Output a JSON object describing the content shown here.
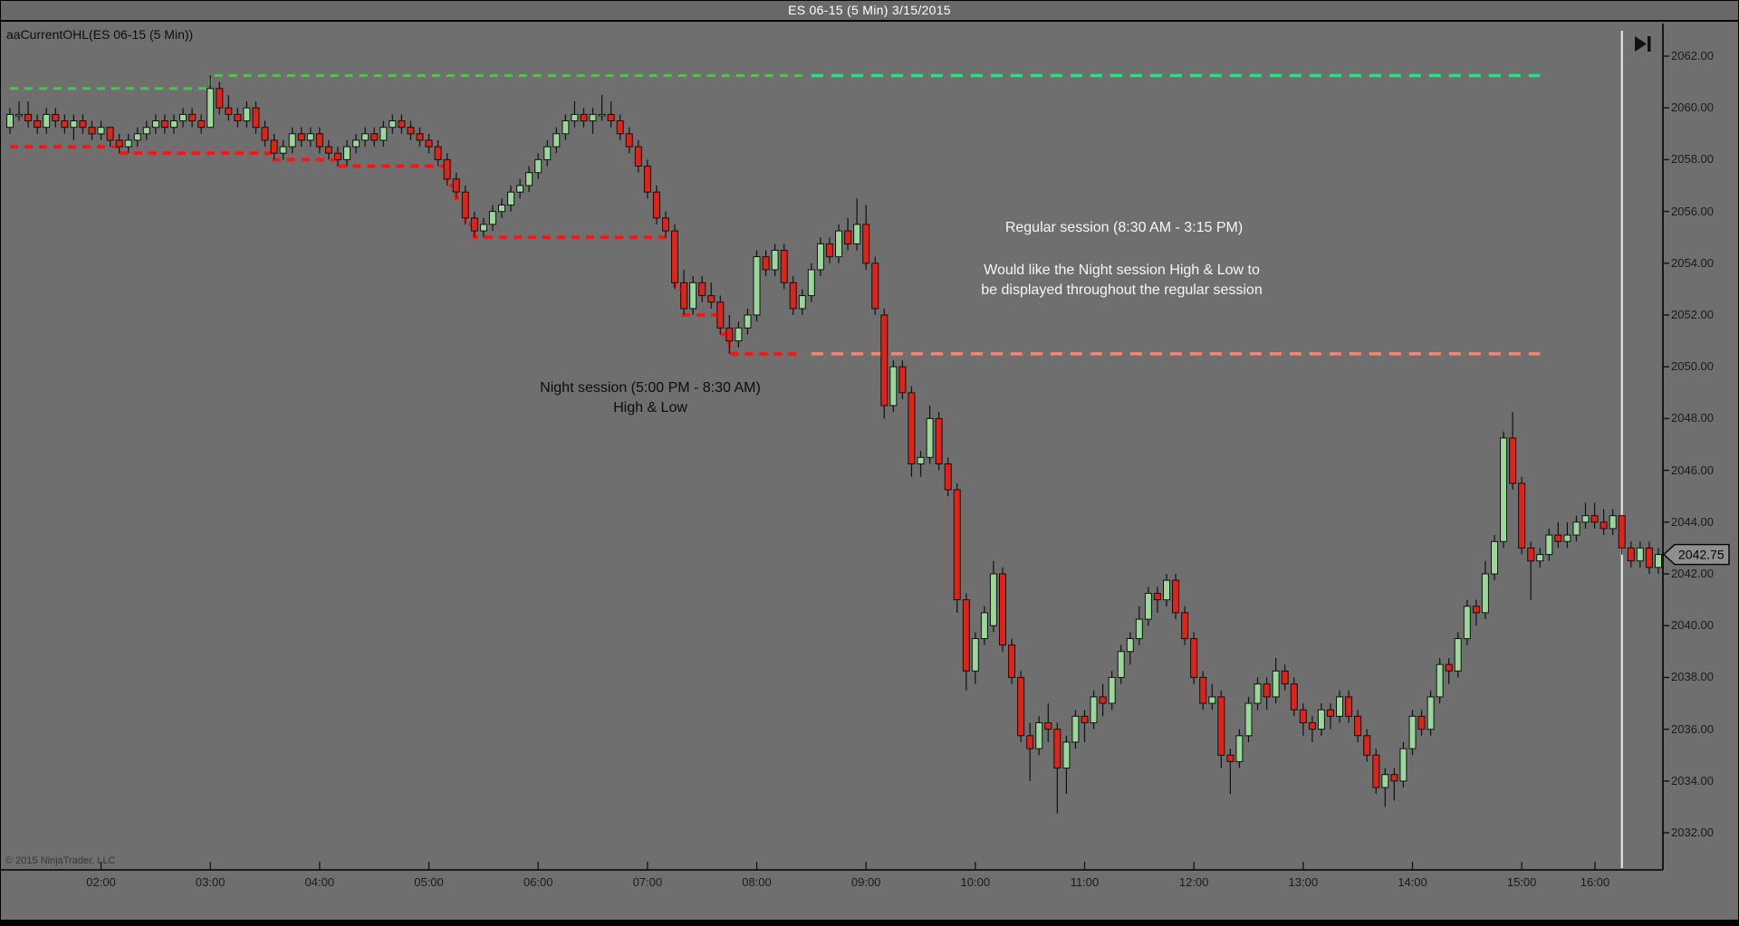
{
  "window": {
    "title": "ES 06-15 (5 Min)  3/15/2015"
  },
  "chart": {
    "indicator_label": "aaCurrentOHL(ES 06-15 (5 Min))",
    "copyright": "© 2015 NinjaTrader, LLC",
    "last_price": "2042.75",
    "annotations": {
      "regular_session_line1": "Regular session (8:30 AM - 3:15 PM)",
      "request_line1": "Would like the Night session High & Low  to",
      "request_line2": "be displayed throughout the regular session",
      "night_session_line1": "Night session (5:00 PM - 8:30 AM)",
      "night_session_line2": "High & Low"
    },
    "icons": {
      "go_to_end": "skip-to-last-bar"
    },
    "colors": {
      "background": "#6f6f6f",
      "up_candle": "#99d899",
      "down_candle": "#e02318",
      "candle_outline": "#101010",
      "night_high_line": "#3ecf3e",
      "night_low_line": "#ff1414",
      "regular_high_line": "#21e583",
      "regular_low_line": "#ff8273",
      "session_divider": "#ededed",
      "axis_text": "#1b1b1b",
      "marker_fill": "#8f8f8f"
    }
  },
  "chart_data": {
    "type": "candlestick",
    "symbol": "ES 06-15",
    "period": "5 Min",
    "date": "3/15/2015",
    "start_time": "01:10",
    "interval_minutes": 5,
    "x_axis": {
      "labels": [
        "02:00",
        "03:00",
        "04:00",
        "05:00",
        "06:00",
        "07:00",
        "08:00",
        "09:00",
        "10:00",
        "11:00",
        "12:00",
        "13:00",
        "14:00",
        "15:00",
        "16:00"
      ]
    },
    "y_axis": {
      "min": 2032,
      "max": 2062,
      "tick_step": 2,
      "ylim": [
        2030.5,
        2063.3
      ]
    },
    "last_price": 2042.75,
    "levels": {
      "night_high_steps": [
        {
          "from": "01:10",
          "to": "03:00",
          "price": 2060.75
        },
        {
          "from": "03:00",
          "to": "08:25",
          "price": 2061.25
        }
      ],
      "night_low_steps": [
        {
          "from": "01:10",
          "to": "02:10",
          "price": 2058.5
        },
        {
          "from": "02:10",
          "to": "03:35",
          "price": 2058.25
        },
        {
          "from": "03:35",
          "to": "04:10",
          "price": 2058.0
        },
        {
          "from": "04:10",
          "to": "05:10",
          "price": 2057.75
        },
        {
          "from": "05:10",
          "to": "05:15",
          "price": 2057.0
        },
        {
          "from": "05:15",
          "to": "05:20",
          "price": 2056.5
        },
        {
          "from": "05:20",
          "to": "05:25",
          "price": 2055.5
        },
        {
          "from": "05:25",
          "to": "07:15",
          "price": 2055.0
        },
        {
          "from": "07:15",
          "to": "07:20",
          "price": 2053.0
        },
        {
          "from": "07:20",
          "to": "07:40",
          "price": 2052.0
        },
        {
          "from": "07:40",
          "to": "07:45",
          "price": 2051.25
        },
        {
          "from": "07:45",
          "to": "08:25",
          "price": 2050.5
        }
      ],
      "regular_session_high": {
        "from": "08:30",
        "to": "15:10",
        "price": 2061.25
      },
      "regular_session_low": {
        "from": "08:30",
        "to": "15:10",
        "price": 2050.5
      },
      "session_divider_time": "15:55"
    },
    "bars": [
      [
        2059.25,
        2060.0,
        2059.0,
        2059.75
      ],
      [
        2059.75,
        2060.25,
        2059.5,
        2059.75
      ],
      [
        2059.75,
        2060.25,
        2059.25,
        2059.5
      ],
      [
        2059.5,
        2059.75,
        2059.0,
        2059.25
      ],
      [
        2059.25,
        2060.0,
        2059.0,
        2059.75
      ],
      [
        2059.75,
        2060.0,
        2059.25,
        2059.5
      ],
      [
        2059.5,
        2059.75,
        2059.0,
        2059.25
      ],
      [
        2059.25,
        2059.75,
        2058.75,
        2059.5
      ],
      [
        2059.5,
        2059.75,
        2059.0,
        2059.25
      ],
      [
        2059.25,
        2059.5,
        2058.75,
        2059.0
      ],
      [
        2059.0,
        2059.5,
        2058.75,
        2059.25
      ],
      [
        2059.25,
        2059.25,
        2058.5,
        2058.75
      ],
      [
        2058.75,
        2059.0,
        2058.25,
        2058.5
      ],
      [
        2058.5,
        2059.0,
        2058.25,
        2058.75
      ],
      [
        2058.75,
        2059.25,
        2058.5,
        2059.0
      ],
      [
        2059.0,
        2059.5,
        2058.75,
        2059.25
      ],
      [
        2059.25,
        2059.75,
        2059.0,
        2059.5
      ],
      [
        2059.5,
        2059.75,
        2059.0,
        2059.25
      ],
      [
        2059.25,
        2059.75,
        2059.0,
        2059.5
      ],
      [
        2059.5,
        2060.0,
        2059.25,
        2059.75
      ],
      [
        2059.75,
        2060.0,
        2059.25,
        2059.5
      ],
      [
        2059.5,
        2059.75,
        2059.0,
        2059.25
      ],
      [
        2059.25,
        2061.25,
        2059.25,
        2060.75
      ],
      [
        2060.75,
        2061.0,
        2059.75,
        2060.0
      ],
      [
        2060.0,
        2060.5,
        2059.5,
        2059.75
      ],
      [
        2059.75,
        2060.0,
        2059.25,
        2059.5
      ],
      [
        2059.5,
        2060.25,
        2059.25,
        2060.0
      ],
      [
        2060.0,
        2060.25,
        2059.0,
        2059.25
      ],
      [
        2059.25,
        2059.5,
        2058.5,
        2058.75
      ],
      [
        2058.75,
        2059.0,
        2058.0,
        2058.25
      ],
      [
        2058.25,
        2058.75,
        2058.0,
        2058.5
      ],
      [
        2058.5,
        2059.25,
        2058.25,
        2059.0
      ],
      [
        2059.0,
        2059.25,
        2058.5,
        2058.75
      ],
      [
        2058.75,
        2059.25,
        2058.5,
        2059.0
      ],
      [
        2059.0,
        2059.25,
        2058.25,
        2058.5
      ],
      [
        2058.5,
        2058.75,
        2058.0,
        2058.25
      ],
      [
        2058.25,
        2058.5,
        2057.75,
        2058.0
      ],
      [
        2058.0,
        2058.75,
        2057.75,
        2058.5
      ],
      [
        2058.5,
        2059.0,
        2058.25,
        2058.75
      ],
      [
        2058.75,
        2059.25,
        2058.5,
        2059.0
      ],
      [
        2059.0,
        2059.25,
        2058.5,
        2058.75
      ],
      [
        2058.75,
        2059.5,
        2058.5,
        2059.25
      ],
      [
        2059.25,
        2059.75,
        2059.0,
        2059.5
      ],
      [
        2059.5,
        2059.75,
        2059.0,
        2059.25
      ],
      [
        2059.25,
        2059.5,
        2058.75,
        2059.0
      ],
      [
        2059.0,
        2059.25,
        2058.5,
        2058.75
      ],
      [
        2058.75,
        2059.0,
        2058.25,
        2058.5
      ],
      [
        2058.5,
        2058.75,
        2057.75,
        2058.0
      ],
      [
        2058.0,
        2058.25,
        2057.0,
        2057.25
      ],
      [
        2057.25,
        2057.5,
        2056.5,
        2056.75
      ],
      [
        2056.75,
        2057.0,
        2055.5,
        2055.75
      ],
      [
        2055.75,
        2056.0,
        2055.0,
        2055.25
      ],
      [
        2055.25,
        2055.75,
        2055.0,
        2055.5
      ],
      [
        2055.5,
        2056.25,
        2055.25,
        2056.0
      ],
      [
        2056.0,
        2056.5,
        2055.75,
        2056.25
      ],
      [
        2056.25,
        2057.0,
        2056.0,
        2056.75
      ],
      [
        2056.75,
        2057.25,
        2056.5,
        2057.0
      ],
      [
        2057.0,
        2057.75,
        2056.75,
        2057.5
      ],
      [
        2057.5,
        2058.25,
        2057.25,
        2058.0
      ],
      [
        2058.0,
        2058.75,
        2057.75,
        2058.5
      ],
      [
        2058.5,
        2059.25,
        2058.25,
        2059.0
      ],
      [
        2059.0,
        2059.75,
        2058.75,
        2059.5
      ],
      [
        2059.5,
        2060.25,
        2059.25,
        2059.75
      ],
      [
        2059.75,
        2060.0,
        2059.25,
        2059.5
      ],
      [
        2059.5,
        2060.0,
        2059.0,
        2059.75
      ],
      [
        2059.75,
        2060.5,
        2059.5,
        2059.75
      ],
      [
        2059.75,
        2060.25,
        2059.25,
        2059.5
      ],
      [
        2059.5,
        2059.75,
        2058.75,
        2059.0
      ],
      [
        2059.0,
        2059.25,
        2058.25,
        2058.5
      ],
      [
        2058.5,
        2058.75,
        2057.5,
        2057.75
      ],
      [
        2057.75,
        2058.0,
        2056.5,
        2056.75
      ],
      [
        2056.75,
        2057.0,
        2055.5,
        2055.75
      ],
      [
        2055.75,
        2056.0,
        2055.0,
        2055.25
      ],
      [
        2055.25,
        2055.5,
        2053.0,
        2053.25
      ],
      [
        2053.25,
        2053.75,
        2052.0,
        2052.25
      ],
      [
        2052.25,
        2053.5,
        2052.0,
        2053.25
      ],
      [
        2053.25,
        2053.5,
        2052.5,
        2052.75
      ],
      [
        2052.75,
        2053.25,
        2052.25,
        2052.5
      ],
      [
        2052.5,
        2052.75,
        2051.25,
        2051.5
      ],
      [
        2051.5,
        2052.0,
        2050.5,
        2051.0
      ],
      [
        2051.0,
        2051.75,
        2050.75,
        2051.5
      ],
      [
        2051.5,
        2052.25,
        2051.25,
        2052.0
      ],
      [
        2052.0,
        2054.5,
        2051.75,
        2054.25
      ],
      [
        2054.25,
        2054.5,
        2053.5,
        2053.75
      ],
      [
        2053.75,
        2054.75,
        2053.5,
        2054.5
      ],
      [
        2054.5,
        2054.75,
        2053.0,
        2053.25
      ],
      [
        2053.25,
        2053.5,
        2052.0,
        2052.25
      ],
      [
        2052.25,
        2053.0,
        2052.0,
        2052.75
      ],
      [
        2052.75,
        2054.0,
        2052.5,
        2053.75
      ],
      [
        2053.75,
        2055.0,
        2053.5,
        2054.75
      ],
      [
        2054.75,
        2055.0,
        2054.0,
        2054.25
      ],
      [
        2054.25,
        2055.5,
        2054.0,
        2055.25
      ],
      [
        2055.25,
        2055.75,
        2054.5,
        2054.75
      ],
      [
        2054.75,
        2056.5,
        2054.5,
        2055.5
      ],
      [
        2055.5,
        2056.25,
        2053.75,
        2054.0
      ],
      [
        2054.0,
        2054.25,
        2052.0,
        2052.25
      ],
      [
        2052.0,
        2052.25,
        2048.0,
        2048.5
      ],
      [
        2048.5,
        2050.25,
        2048.25,
        2050.0
      ],
      [
        2050.0,
        2050.25,
        2048.75,
        2049.0
      ],
      [
        2049.0,
        2049.25,
        2045.75,
        2046.25
      ],
      [
        2046.25,
        2046.75,
        2045.75,
        2046.5
      ],
      [
        2046.5,
        2048.5,
        2046.25,
        2048.0
      ],
      [
        2048.0,
        2048.25,
        2046.0,
        2046.25
      ],
      [
        2046.25,
        2046.5,
        2045.0,
        2045.25
      ],
      [
        2045.25,
        2045.5,
        2040.5,
        2041.0
      ],
      [
        2041.0,
        2041.25,
        2037.5,
        2038.25
      ],
      [
        2038.25,
        2039.75,
        2037.75,
        2039.5
      ],
      [
        2039.5,
        2040.75,
        2039.25,
        2040.5
      ],
      [
        2040.0,
        2042.5,
        2039.75,
        2042.0
      ],
      [
        2042.0,
        2042.25,
        2039.0,
        2039.25
      ],
      [
        2039.25,
        2039.5,
        2037.75,
        2038.0
      ],
      [
        2038.0,
        2038.25,
        2035.5,
        2035.75
      ],
      [
        2035.75,
        2036.25,
        2034.0,
        2035.25
      ],
      [
        2035.25,
        2036.5,
        2035.0,
        2036.25
      ],
      [
        2036.25,
        2037.0,
        2035.5,
        2036.0
      ],
      [
        2036.0,
        2036.25,
        2032.75,
        2034.5
      ],
      [
        2034.5,
        2035.75,
        2033.5,
        2035.5
      ],
      [
        2035.5,
        2036.75,
        2035.25,
        2036.5
      ],
      [
        2036.5,
        2036.75,
        2035.5,
        2036.25
      ],
      [
        2036.25,
        2037.5,
        2036.0,
        2037.25
      ],
      [
        2037.25,
        2037.75,
        2036.5,
        2037.0
      ],
      [
        2037.0,
        2038.25,
        2036.75,
        2038.0
      ],
      [
        2038.0,
        2039.25,
        2037.75,
        2039.0
      ],
      [
        2039.0,
        2039.75,
        2038.5,
        2039.5
      ],
      [
        2039.5,
        2040.75,
        2039.25,
        2040.25
      ],
      [
        2040.25,
        2041.5,
        2040.0,
        2041.25
      ],
      [
        2041.25,
        2041.5,
        2040.5,
        2041.0
      ],
      [
        2041.0,
        2042.0,
        2040.75,
        2041.75
      ],
      [
        2041.75,
        2042.0,
        2040.25,
        2040.5
      ],
      [
        2040.5,
        2040.75,
        2039.25,
        2039.5
      ],
      [
        2039.5,
        2039.75,
        2037.75,
        2038.0
      ],
      [
        2038.0,
        2038.25,
        2036.75,
        2037.0
      ],
      [
        2037.0,
        2037.75,
        2036.75,
        2037.25
      ],
      [
        2037.25,
        2037.5,
        2034.5,
        2035.0
      ],
      [
        2035.0,
        2035.25,
        2033.5,
        2034.75
      ],
      [
        2034.75,
        2036.0,
        2034.5,
        2035.75
      ],
      [
        2035.75,
        2037.25,
        2035.5,
        2037.0
      ],
      [
        2037.0,
        2038.0,
        2036.75,
        2037.75
      ],
      [
        2037.75,
        2038.0,
        2036.75,
        2037.25
      ],
      [
        2037.25,
        2038.75,
        2037.0,
        2038.25
      ],
      [
        2038.25,
        2038.5,
        2037.5,
        2037.75
      ],
      [
        2037.75,
        2038.0,
        2036.5,
        2036.75
      ],
      [
        2036.75,
        2037.0,
        2035.75,
        2036.25
      ],
      [
        2036.25,
        2036.5,
        2035.5,
        2036.0
      ],
      [
        2036.0,
        2037.0,
        2035.75,
        2036.75
      ],
      [
        2036.75,
        2037.0,
        2036.0,
        2036.5
      ],
      [
        2036.5,
        2037.5,
        2036.25,
        2037.25
      ],
      [
        2037.25,
        2037.5,
        2036.25,
        2036.5
      ],
      [
        2036.5,
        2036.75,
        2035.5,
        2035.75
      ],
      [
        2035.75,
        2036.0,
        2034.75,
        2035.0
      ],
      [
        2035.0,
        2035.25,
        2033.5,
        2033.75
      ],
      [
        2033.75,
        2034.5,
        2033.0,
        2034.25
      ],
      [
        2034.25,
        2034.5,
        2033.25,
        2034.0
      ],
      [
        2034.0,
        2035.5,
        2033.75,
        2035.25
      ],
      [
        2035.25,
        2036.75,
        2035.0,
        2036.5
      ],
      [
        2036.5,
        2036.75,
        2035.75,
        2036.0
      ],
      [
        2036.0,
        2037.5,
        2035.75,
        2037.25
      ],
      [
        2037.25,
        2038.75,
        2037.0,
        2038.5
      ],
      [
        2038.5,
        2038.75,
        2037.75,
        2038.25
      ],
      [
        2038.25,
        2039.75,
        2038.0,
        2039.5
      ],
      [
        2039.5,
        2041.0,
        2039.25,
        2040.75
      ],
      [
        2040.75,
        2041.0,
        2040.0,
        2040.5
      ],
      [
        2040.5,
        2042.5,
        2040.25,
        2042.0
      ],
      [
        2042.0,
        2043.5,
        2041.75,
        2043.25
      ],
      [
        2043.25,
        2047.5,
        2043.0,
        2047.25
      ],
      [
        2047.25,
        2048.25,
        2045.25,
        2045.5
      ],
      [
        2045.5,
        2045.75,
        2042.75,
        2043.0
      ],
      [
        2043.0,
        2043.25,
        2041.0,
        2042.5
      ],
      [
        2042.5,
        2043.0,
        2042.25,
        2042.75
      ],
      [
        2042.75,
        2043.75,
        2042.5,
        2043.5
      ],
      [
        2043.5,
        2044.0,
        2043.0,
        2043.25
      ],
      [
        2043.25,
        2044.0,
        2043.0,
        2043.5
      ],
      [
        2043.5,
        2044.25,
        2043.25,
        2044.0
      ],
      [
        2044.0,
        2044.75,
        2043.75,
        2044.25
      ],
      [
        2044.25,
        2044.75,
        2043.75,
        2044.0
      ],
      [
        2044.0,
        2044.5,
        2043.5,
        2043.75
      ],
      [
        2043.75,
        2044.5,
        2043.5,
        2044.25
      ],
      [
        2044.25,
        2044.25,
        2042.75,
        2043.0
      ],
      [
        2043.0,
        2043.25,
        2042.25,
        2042.5
      ],
      [
        2042.5,
        2043.25,
        2042.25,
        2043.0
      ],
      [
        2043.0,
        2043.25,
        2042.0,
        2042.25
      ],
      [
        2042.25,
        2043.0,
        2042.0,
        2042.75
      ]
    ]
  }
}
